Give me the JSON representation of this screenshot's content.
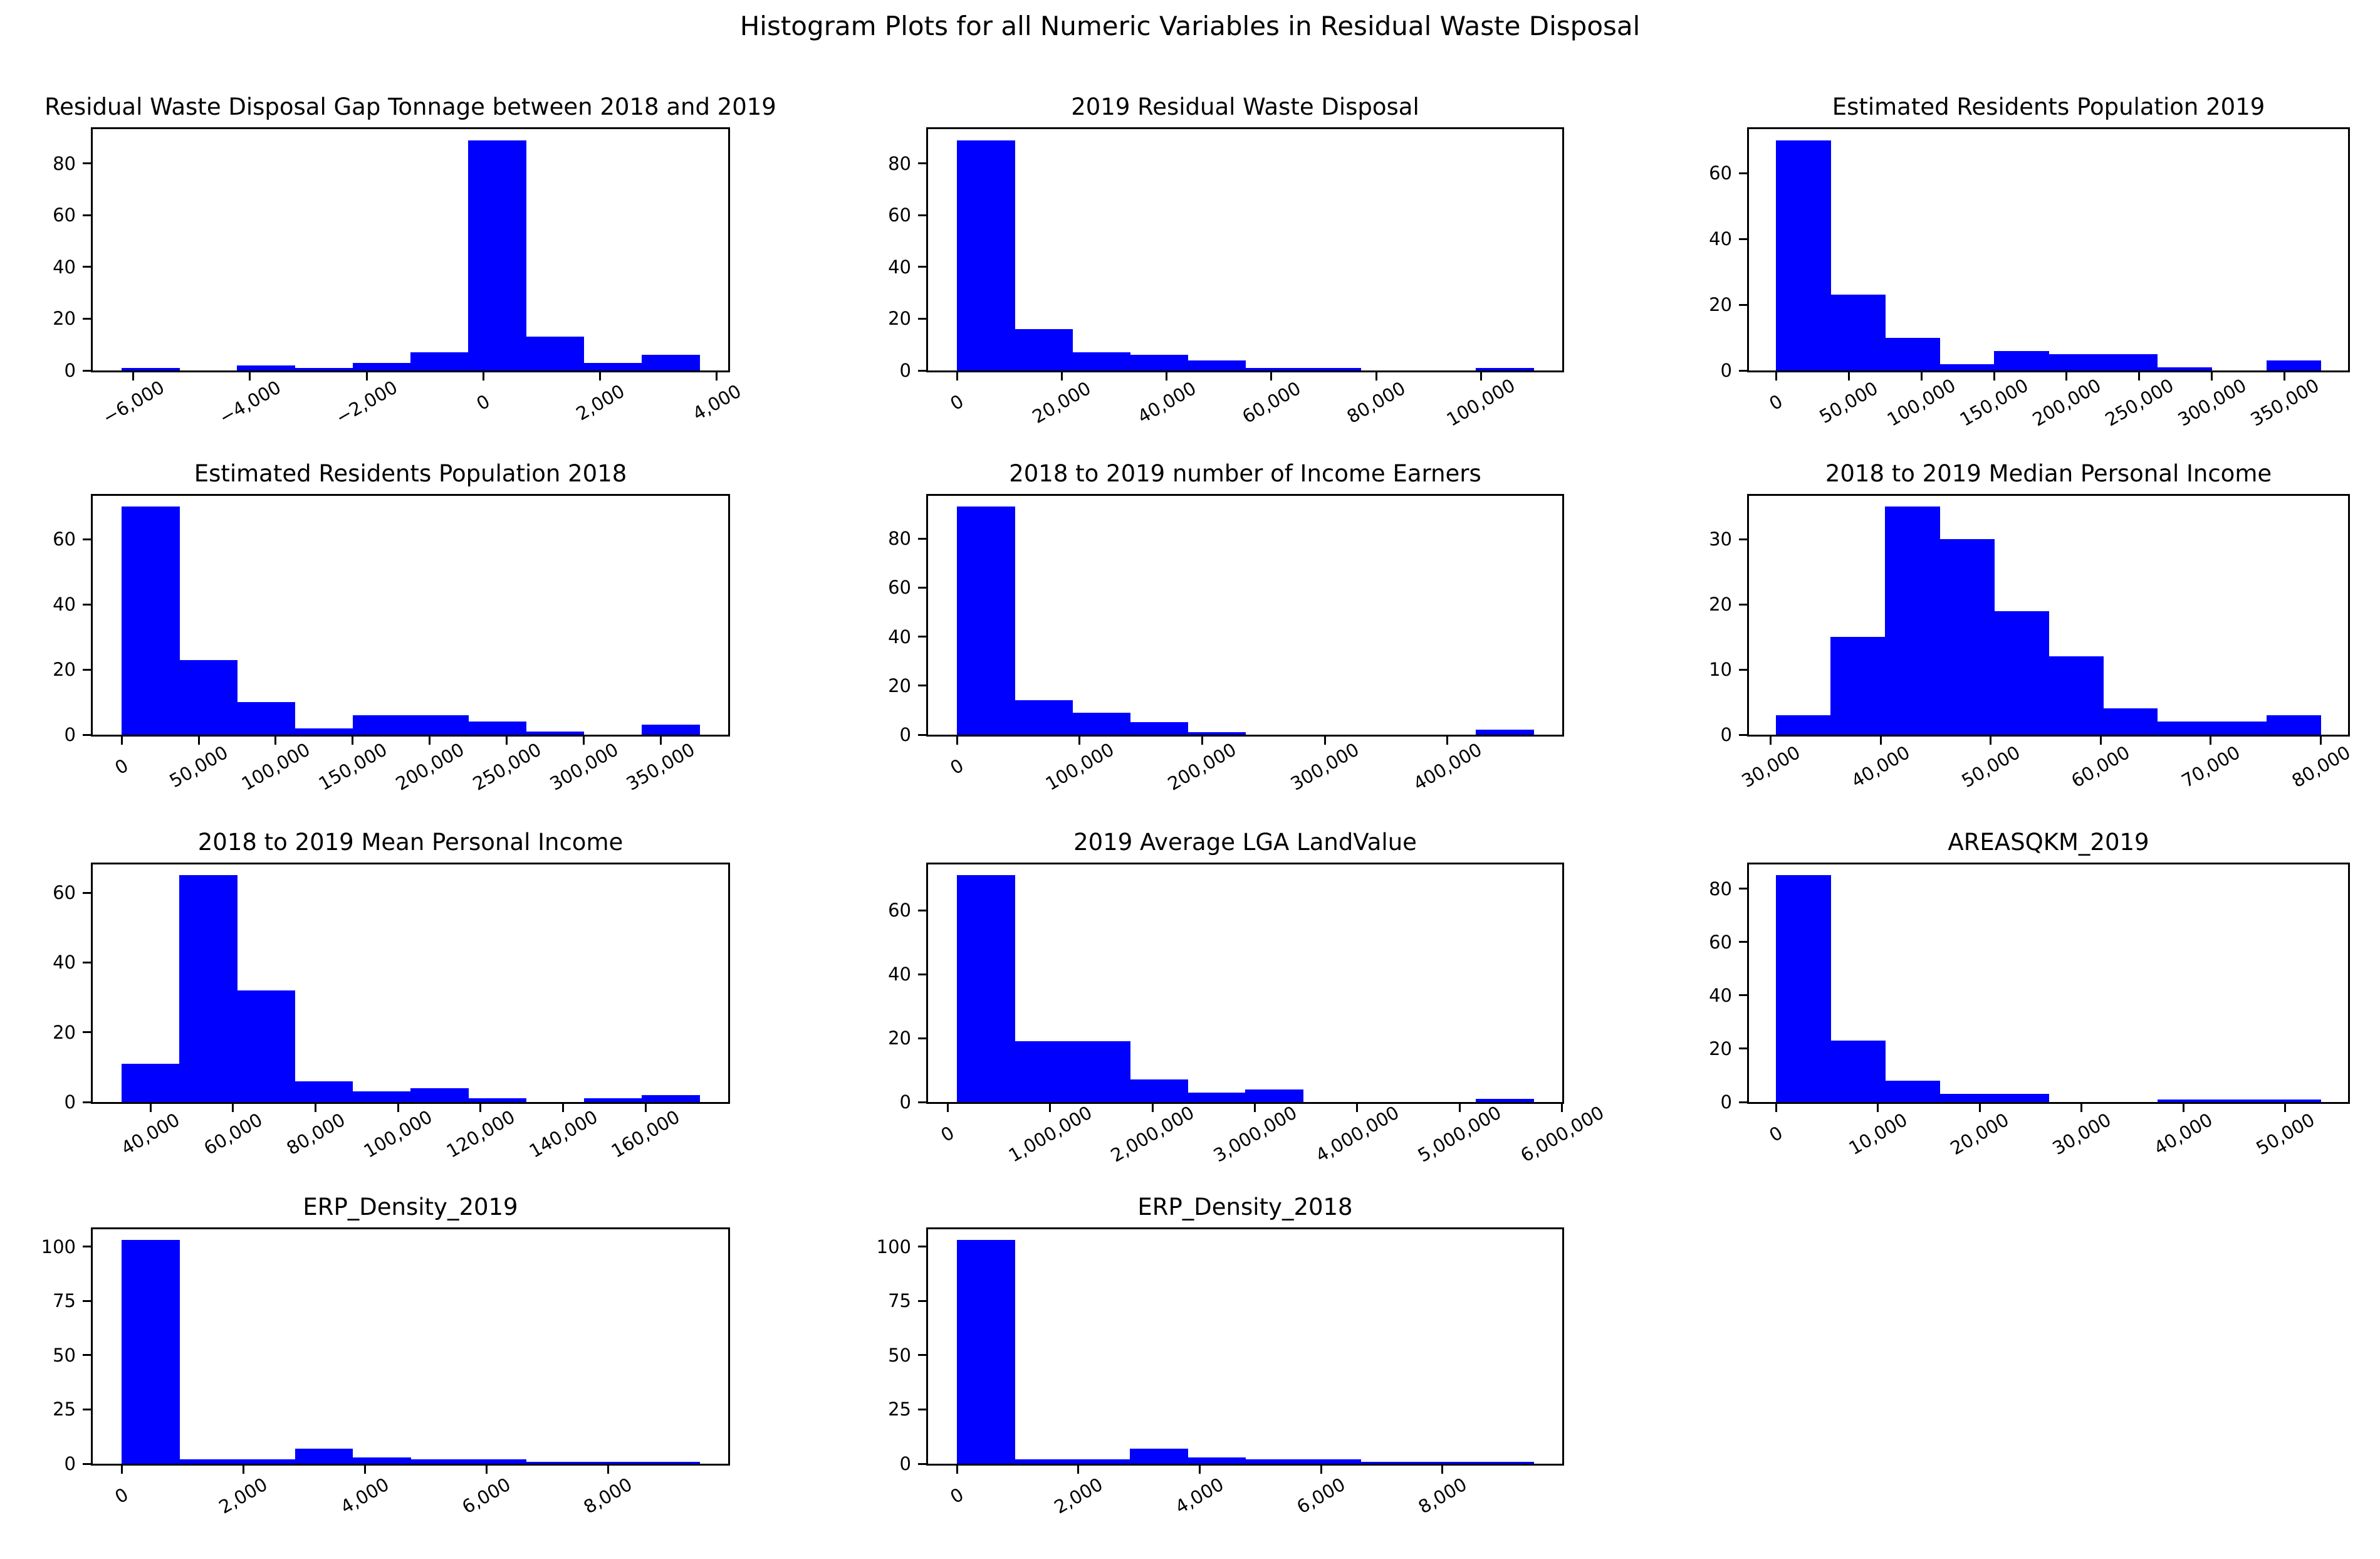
{
  "suptitle": "Histogram Plots for all Numeric Variables in Residual Waste Disposal",
  "colors": {
    "bar": "#0000FF",
    "bar_edge": "#8c8cff",
    "axis": "#000000",
    "text": "#000000",
    "background": "#FFFFFF"
  },
  "chart_data": [
    {
      "type": "bar",
      "subtype": "histogram",
      "title": "Residual Waste Disposal Gap Tonnage between 2018 and 2019",
      "bin_start": -6200,
      "bin_width": 990,
      "counts": [
        1,
        0,
        2,
        1,
        3,
        7,
        89,
        13,
        3,
        6
      ],
      "xtick_values": [
        -6000,
        -4000,
        -2000,
        0,
        2000,
        4000
      ],
      "xtick_labels": [
        "−6,000",
        "−4,000",
        "−2,000",
        "0",
        "2,000",
        "4,000"
      ],
      "ytick_values": [
        0,
        20,
        40,
        60,
        80
      ],
      "ytick_labels": [
        "0",
        "20",
        "40",
        "60",
        "80"
      ],
      "ylim": [
        0,
        93.3
      ],
      "grid": false
    },
    {
      "type": "bar",
      "subtype": "histogram",
      "title": "2019 Residual Waste Disposal",
      "bin_start": 0,
      "bin_width": 11000,
      "counts": [
        89,
        16,
        7,
        6,
        4,
        1,
        1,
        0,
        0,
        1
      ],
      "xtick_values": [
        0,
        20000,
        40000,
        60000,
        80000,
        100000
      ],
      "xtick_labels": [
        "0",
        "20,000",
        "40,000",
        "60,000",
        "80,000",
        "100,000"
      ],
      "ytick_values": [
        0,
        20,
        40,
        60,
        80
      ],
      "ytick_labels": [
        "0",
        "20",
        "40",
        "60",
        "80"
      ],
      "ylim": [
        0,
        93.3
      ],
      "grid": false
    },
    {
      "type": "bar",
      "subtype": "histogram",
      "title": "Estimated Residents Population 2019",
      "bin_start": 0,
      "bin_width": 37500,
      "counts": [
        70,
        23,
        10,
        2,
        6,
        5,
        5,
        1,
        0,
        3
      ],
      "xtick_values": [
        0,
        50000,
        100000,
        150000,
        200000,
        250000,
        300000,
        350000
      ],
      "xtick_labels": [
        "0",
        "50,000",
        "100,000",
        "150,000",
        "200,000",
        "250,000",
        "300,000",
        "350,000"
      ],
      "ytick_values": [
        0,
        20,
        40,
        60
      ],
      "ytick_labels": [
        "0",
        "20",
        "40",
        "60"
      ],
      "ylim": [
        0,
        73.4
      ],
      "grid": false
    },
    {
      "type": "bar",
      "subtype": "histogram",
      "title": "Estimated Residents Population 2018",
      "bin_start": 0,
      "bin_width": 37500,
      "counts": [
        70,
        23,
        10,
        2,
        6,
        6,
        4,
        1,
        0,
        3
      ],
      "xtick_values": [
        0,
        50000,
        100000,
        150000,
        200000,
        250000,
        300000,
        350000
      ],
      "xtick_labels": [
        "0",
        "50,000",
        "100,000",
        "150,000",
        "200,000",
        "250,000",
        "300,000",
        "350,000"
      ],
      "ytick_values": [
        0,
        20,
        40,
        60
      ],
      "ytick_labels": [
        "0",
        "20",
        "40",
        "60"
      ],
      "ylim": [
        0,
        73.4
      ],
      "grid": false
    },
    {
      "type": "bar",
      "subtype": "histogram",
      "title": "2018 to 2019 number of Income Earners",
      "bin_start": 0,
      "bin_width": 47000,
      "counts": [
        93,
        14,
        9,
        5,
        1,
        0,
        0,
        0,
        0,
        2
      ],
      "xtick_values": [
        0,
        100000,
        200000,
        300000,
        400000
      ],
      "xtick_labels": [
        "0",
        "100,000",
        "200,000",
        "300,000",
        "400,000"
      ],
      "ytick_values": [
        0,
        20,
        40,
        60,
        80
      ],
      "ytick_labels": [
        "0",
        "20",
        "40",
        "60",
        "80"
      ],
      "ylim": [
        0,
        97.5
      ],
      "grid": false
    },
    {
      "type": "bar",
      "subtype": "histogram",
      "title": "2018 to 2019 Median Personal Income",
      "bin_start": 30500,
      "bin_width": 4950,
      "counts": [
        3,
        15,
        35,
        30,
        19,
        12,
        4,
        2,
        2,
        3
      ],
      "xtick_values": [
        30000,
        40000,
        50000,
        60000,
        70000,
        80000
      ],
      "xtick_labels": [
        "30,000",
        "40,000",
        "50,000",
        "60,000",
        "70,000",
        "80,000"
      ],
      "ytick_values": [
        0,
        10,
        20,
        30
      ],
      "ytick_labels": [
        "0",
        "10",
        "20",
        "30"
      ],
      "ylim": [
        0,
        36.7
      ],
      "grid": false
    },
    {
      "type": "bar",
      "subtype": "histogram",
      "title": "2018 to 2019 Mean Personal Income",
      "bin_start": 33000,
      "bin_width": 14000,
      "counts": [
        11,
        65,
        32,
        6,
        3,
        4,
        1,
        0,
        1,
        2
      ],
      "xtick_values": [
        40000,
        60000,
        80000,
        100000,
        120000,
        140000,
        160000
      ],
      "xtick_labels": [
        "40,000",
        "60,000",
        "80,000",
        "100,000",
        "120,000",
        "140,000",
        "160,000"
      ],
      "ytick_values": [
        0,
        20,
        40,
        60
      ],
      "ytick_labels": [
        "0",
        "20",
        "40",
        "60"
      ],
      "ylim": [
        0,
        68.1
      ],
      "grid": false
    },
    {
      "type": "bar",
      "subtype": "histogram",
      "title": "2019 Average LGA LandValue",
      "bin_start": 90000,
      "bin_width": 563000,
      "counts": [
        71,
        19,
        19,
        7,
        3,
        4,
        0,
        0,
        0,
        1
      ],
      "xtick_values": [
        0,
        1000000,
        2000000,
        3000000,
        4000000,
        5000000,
        6000000
      ],
      "xtick_labels": [
        "0",
        "1,000,000",
        "2,000,000",
        "3,000,000",
        "4,000,000",
        "5,000,000",
        "6,000,000"
      ],
      "ytick_values": [
        0,
        20,
        40,
        60
      ],
      "ytick_labels": [
        "0",
        "20",
        "40",
        "60"
      ],
      "ylim": [
        0,
        74.4
      ],
      "grid": false
    },
    {
      "type": "bar",
      "subtype": "histogram",
      "title": "AREASQKM_2019",
      "bin_start": 0,
      "bin_width": 5350,
      "counts": [
        85,
        23,
        8,
        3,
        3,
        0,
        0,
        1,
        1,
        1
      ],
      "xtick_values": [
        0,
        10000,
        20000,
        30000,
        40000,
        50000
      ],
      "xtick_labels": [
        "0",
        "10,000",
        "20,000",
        "30,000",
        "40,000",
        "50,000"
      ],
      "ytick_values": [
        0,
        20,
        40,
        60,
        80
      ],
      "ytick_labels": [
        "0",
        "20",
        "40",
        "60",
        "80"
      ],
      "ylim": [
        0,
        89.1
      ],
      "grid": false
    },
    {
      "type": "bar",
      "subtype": "histogram",
      "title": "ERP_Density_2019",
      "bin_start": 0,
      "bin_width": 950,
      "counts": [
        103,
        2,
        2,
        7,
        3,
        2,
        2,
        1,
        1,
        1
      ],
      "xtick_values": [
        0,
        2000,
        4000,
        6000,
        8000
      ],
      "xtick_labels": [
        "0",
        "2,000",
        "4,000",
        "6,000",
        "8,000"
      ],
      "ytick_values": [
        0,
        25,
        50,
        75,
        100
      ],
      "ytick_labels": [
        "0",
        "25",
        "50",
        "75",
        "100"
      ],
      "ylim": [
        0,
        108
      ],
      "grid": false
    },
    {
      "type": "bar",
      "subtype": "histogram",
      "title": "ERP_Density_2018",
      "bin_start": 0,
      "bin_width": 950,
      "counts": [
        103,
        2,
        2,
        7,
        3,
        2,
        2,
        1,
        1,
        1
      ],
      "xtick_values": [
        0,
        2000,
        4000,
        6000,
        8000
      ],
      "xtick_labels": [
        "0",
        "2,000",
        "4,000",
        "6,000",
        "8,000"
      ],
      "ytick_values": [
        0,
        25,
        50,
        75,
        100
      ],
      "ytick_labels": [
        "0",
        "25",
        "50",
        "75",
        "100"
      ],
      "ylim": [
        0,
        108
      ],
      "grid": false
    }
  ]
}
